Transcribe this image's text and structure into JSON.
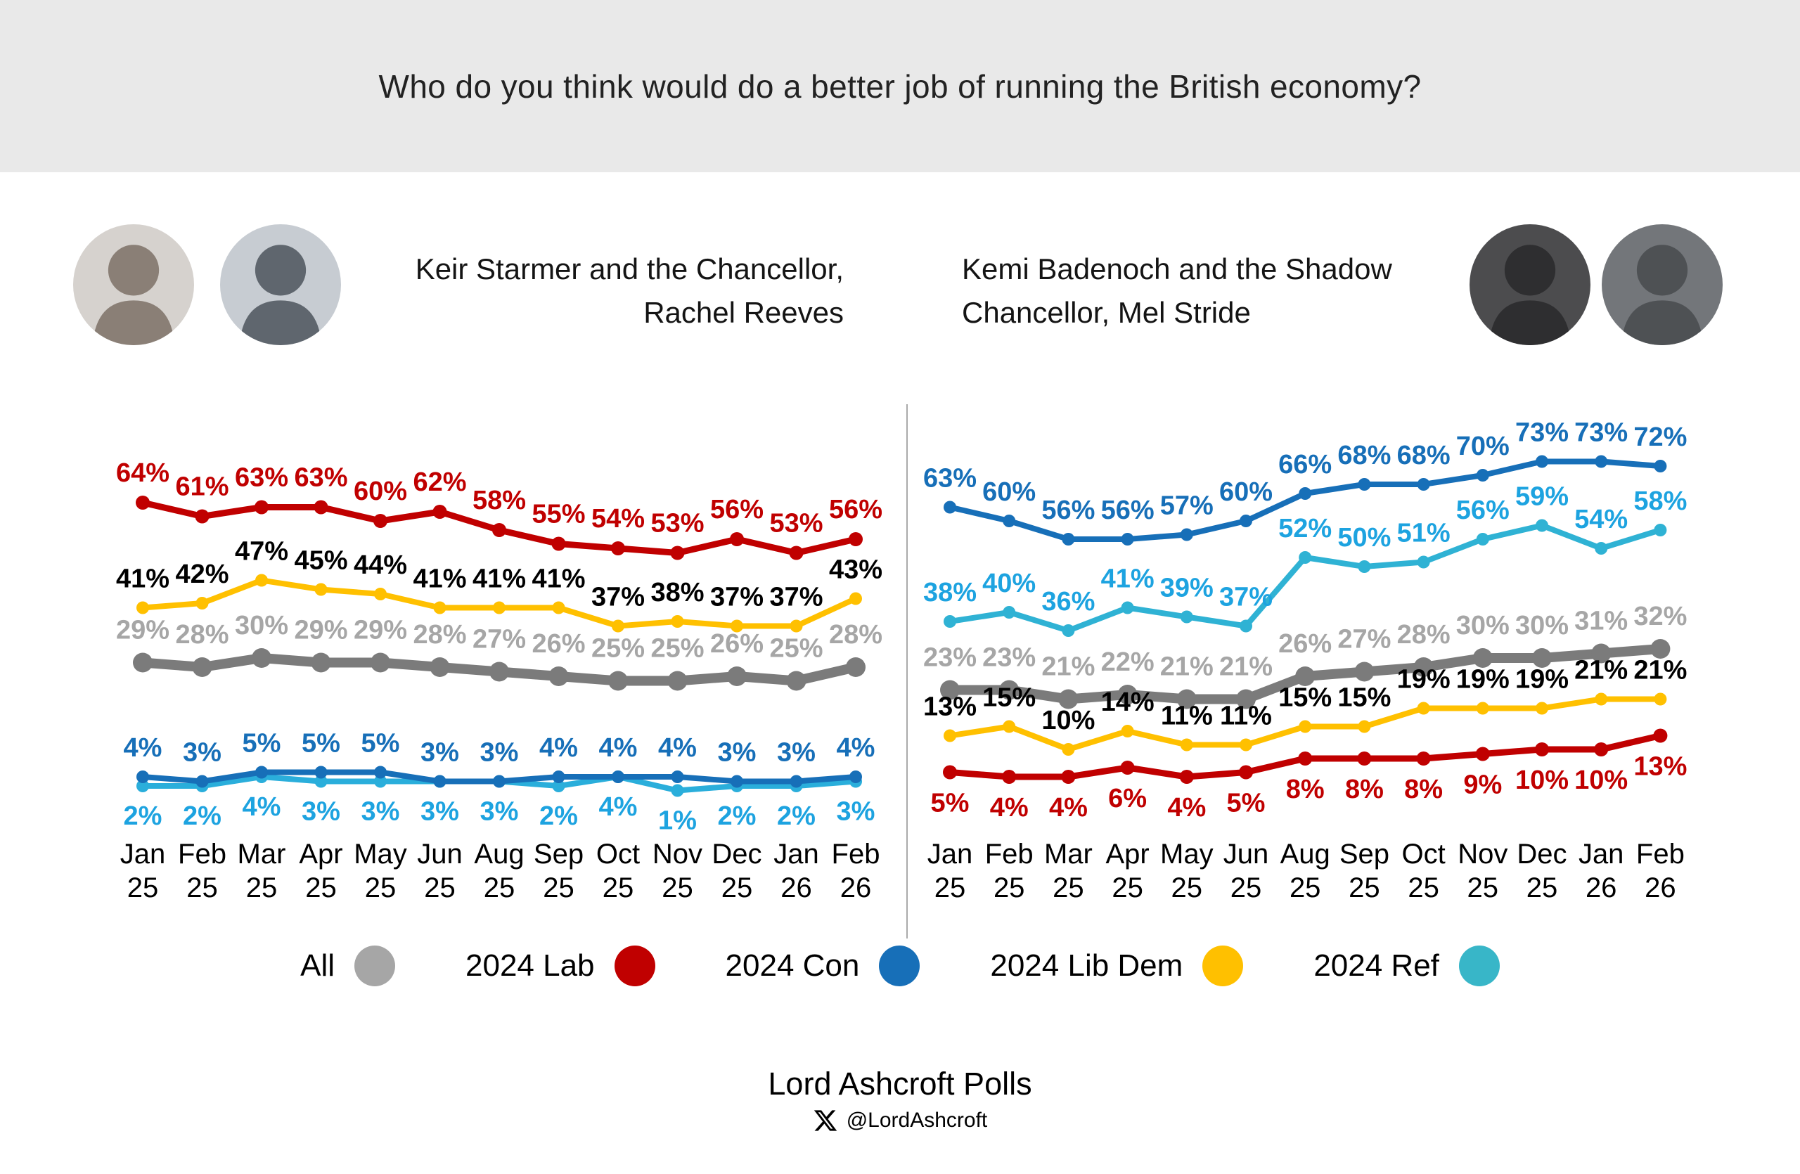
{
  "title": "Who do you think would do a better job of running the British economy?",
  "header": {
    "left": {
      "subtitle_line1": "Keir Starmer and the Chancellor,",
      "subtitle_line2": "Rachel Reeves",
      "avatars": [
        "Rachel Reeves",
        "Keir Starmer"
      ]
    },
    "right": {
      "subtitle_line1": "Kemi Badenoch and the Shadow",
      "subtitle_line2": "Chancellor, Mel Stride",
      "avatars": [
        "Kemi Badenoch",
        "Mel Stride"
      ]
    }
  },
  "chart_data": [
    {
      "type": "line",
      "title": "Keir Starmer and the Chancellor, Rachel Reeves",
      "x": [
        "Jan 25",
        "Feb 25",
        "Mar 25",
        "Apr 25",
        "May 25",
        "Jun 25",
        "Aug 25",
        "Sep 25",
        "Oct 25",
        "Nov 25",
        "Dec 25",
        "Jan 26",
        "Feb 26"
      ],
      "series": [
        {
          "name": "All",
          "color": "#7b7b7b",
          "label_color": "#a6a6a6",
          "label_side": "above",
          "values": [
            29,
            28,
            30,
            29,
            29,
            28,
            27,
            26,
            25,
            25,
            26,
            25,
            28
          ]
        },
        {
          "name": "2024 Lab",
          "color": "#c00000",
          "label_color": "#c00000",
          "label_side": "above",
          "values": [
            64,
            61,
            63,
            63,
            60,
            62,
            58,
            55,
            54,
            53,
            56,
            53,
            56
          ]
        },
        {
          "name": "2024 Con",
          "color": "#176fb8",
          "label_color": "#176fb8",
          "label_side": "above",
          "values": [
            4,
            3,
            5,
            5,
            5,
            3,
            3,
            4,
            4,
            4,
            3,
            3,
            4
          ]
        },
        {
          "name": "2024 Lib Dem",
          "color": "#ffc000",
          "label_color": "#000000",
          "label_side": "above",
          "values": [
            41,
            42,
            47,
            45,
            44,
            41,
            41,
            41,
            37,
            38,
            37,
            37,
            43
          ]
        },
        {
          "name": "2024 Ref",
          "color": "#2aaedb",
          "label_color": "#1da3e0",
          "label_side": "below",
          "values": [
            2,
            2,
            4,
            3,
            3,
            3,
            3,
            2,
            4,
            1,
            2,
            2,
            3
          ]
        }
      ],
      "xlabel": "",
      "ylabel": "",
      "ylim": [
        0,
        80
      ],
      "grid": false,
      "legend_position": "bottom"
    },
    {
      "type": "line",
      "title": "Kemi Badenoch and the Shadow Chancellor, Mel Stride",
      "x": [
        "Jan 25",
        "Feb 25",
        "Mar 25",
        "Apr 25",
        "May 25",
        "Jun 25",
        "Aug 25",
        "Sep 25",
        "Oct 25",
        "Nov 25",
        "Dec 25",
        "Jan 26",
        "Feb 26"
      ],
      "series": [
        {
          "name": "All",
          "color": "#7b7b7b",
          "label_color": "#a6a6a6",
          "label_side": "above",
          "values": [
            23,
            23,
            21,
            22,
            21,
            21,
            26,
            27,
            28,
            30,
            30,
            31,
            32
          ]
        },
        {
          "name": "2024 Lab",
          "color": "#c00000",
          "label_color": "#c00000",
          "label_side": "below",
          "values": [
            5,
            4,
            4,
            6,
            4,
            5,
            8,
            8,
            8,
            9,
            10,
            10,
            13
          ]
        },
        {
          "name": "2024 Con",
          "color": "#176fb8",
          "label_color": "#176fb8",
          "label_side": "above",
          "values": [
            63,
            60,
            56,
            56,
            57,
            60,
            66,
            68,
            68,
            70,
            73,
            73,
            72
          ]
        },
        {
          "name": "2024 Lib Dem",
          "color": "#ffc000",
          "label_color": "#000000",
          "label_side": "above",
          "values": [
            13,
            15,
            10,
            14,
            11,
            11,
            15,
            15,
            19,
            19,
            19,
            21,
            21
          ]
        },
        {
          "name": "2024 Ref",
          "color": "#2fb2d4",
          "label_color": "#1da3e0",
          "label_side": "above",
          "values": [
            38,
            40,
            36,
            41,
            39,
            37,
            52,
            50,
            51,
            56,
            59,
            54,
            58
          ]
        }
      ],
      "xlabel": "",
      "ylabel": "",
      "ylim": [
        0,
        80
      ],
      "grid": false,
      "legend_position": "bottom"
    }
  ],
  "legend": {
    "items": [
      {
        "label": "All",
        "color": "#a6a6a6"
      },
      {
        "label": "2024 Lab",
        "color": "#c00000"
      },
      {
        "label": "2024 Con",
        "color": "#176fb8"
      },
      {
        "label": "2024 Lib Dem",
        "color": "#ffc000"
      },
      {
        "label": "2024 Ref",
        "color": "#38b6c8"
      }
    ]
  },
  "footer": {
    "brand": "Lord Ashcroft Polls",
    "x_icon": "x-logo",
    "handle": "@LordAshcroft"
  }
}
